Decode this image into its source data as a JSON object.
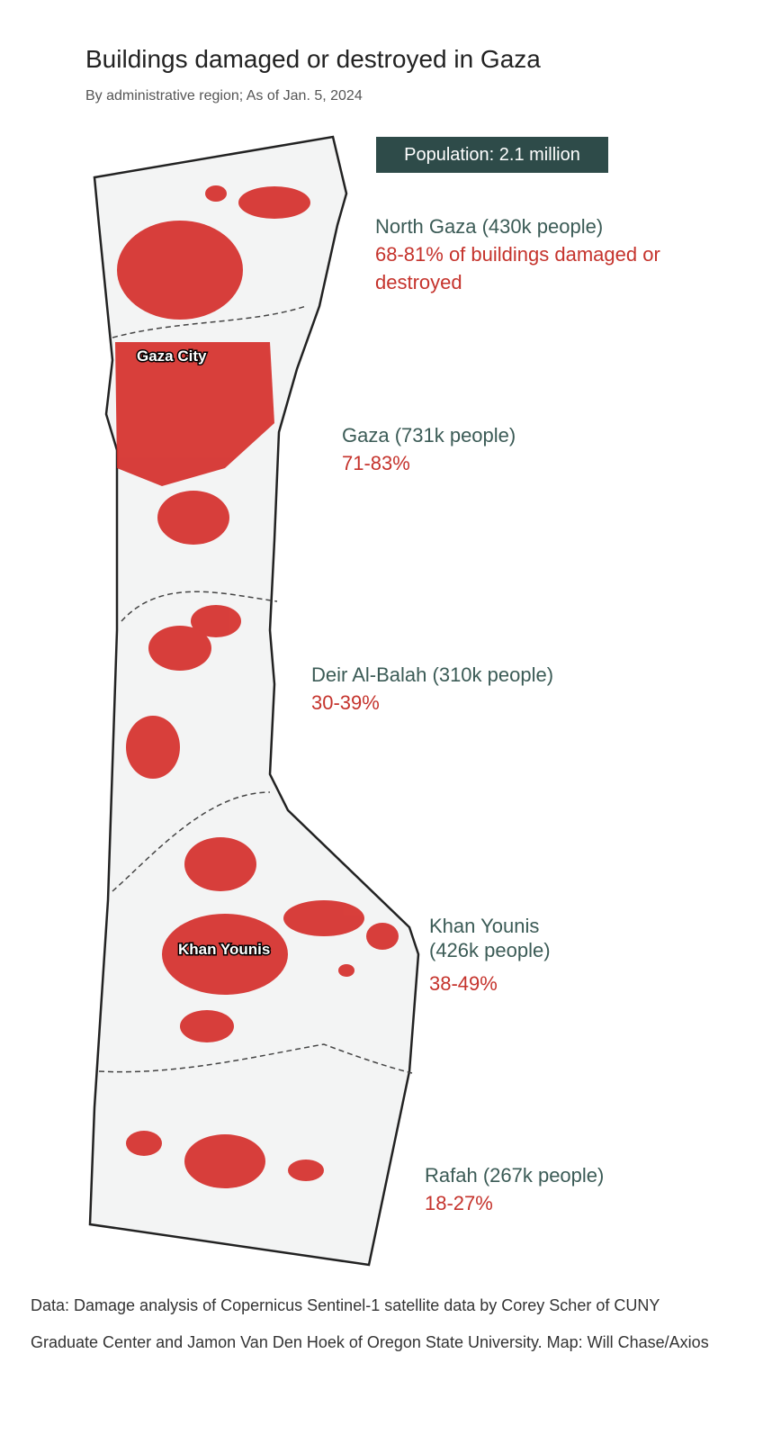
{
  "header": {
    "title": "Buildings damaged or destroyed in Gaza",
    "subtitle": "By administrative region; As of Jan. 5, 2024"
  },
  "badge": "Population: 2.1 million",
  "regions": [
    {
      "name": "North Gaza (430k people)",
      "damage": "68-81% of buildings damaged or destroyed"
    },
    {
      "name": "Gaza (731k people)",
      "damage": "71-83%"
    },
    {
      "name": "Deir Al-Balah (310k people)",
      "damage": "30-39%"
    },
    {
      "name": "Khan Younis (426k people)",
      "damage": "38-49%"
    },
    {
      "name": "Rafah (267k people)",
      "damage": "18-27%"
    }
  ],
  "map_labels": [
    "Gaza City",
    "Khan Younis"
  ],
  "footer": "Data: Damage analysis of Copernicus Sentinel-1 satellite data by Corey Scher of CUNY Graduate Center and Jamon Van Den Hoek of Oregon State University. Map: Will Chase/Axios"
}
